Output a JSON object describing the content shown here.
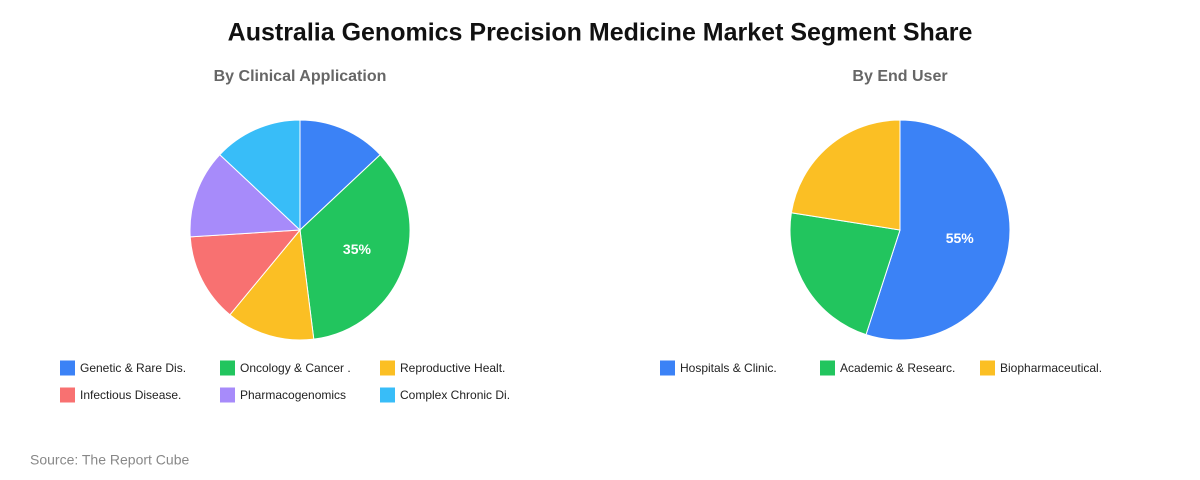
{
  "title": "Australia Genomics Precision Medicine Market Segment Share",
  "source": "Source: The Report Cube",
  "chart_data": [
    {
      "type": "pie",
      "title": "By Clinical Application",
      "categories": [
        "Genetic & Rare Dis.",
        "Oncology & Cancer .",
        "Reproductive Healt.",
        "Infectious Disease.",
        "Pharmacogenomics",
        "Complex Chronic Di."
      ],
      "values": [
        13,
        35,
        13,
        13,
        13,
        13
      ],
      "value_labels": [
        null,
        "35%",
        null,
        null,
        null,
        null
      ],
      "colors": [
        "#3b82f6",
        "#22c55e",
        "#fbbf24",
        "#f87171",
        "#a78bfa",
        "#38bdf8"
      ]
    },
    {
      "type": "pie",
      "title": "By End User",
      "categories": [
        "Hospitals & Clinic.",
        "Academic & Researc.",
        "Biopharmaceutical."
      ],
      "values": [
        55,
        22.5,
        22.5
      ],
      "value_labels": [
        "55%",
        null,
        null
      ],
      "colors": [
        "#3b82f6",
        "#22c55e",
        "#fbbf24"
      ]
    }
  ]
}
